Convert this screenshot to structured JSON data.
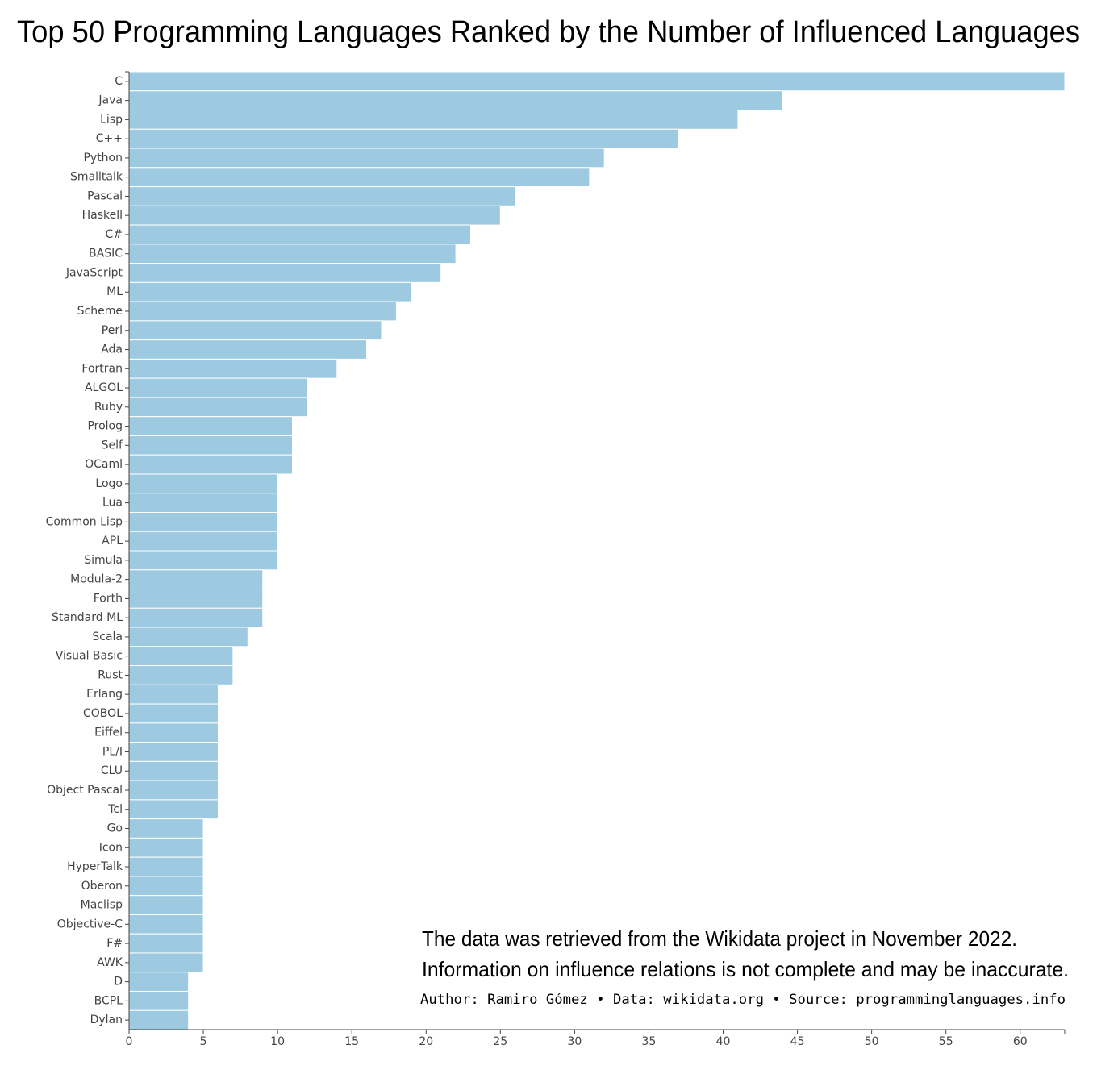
{
  "chart_data": {
    "type": "barh",
    "title": "Top 50 Programming Languages Ranked by the Number of Influenced Languages",
    "categories": [
      "C",
      "Java",
      "Lisp",
      "C++",
      "Python",
      "Smalltalk",
      "Pascal",
      "Haskell",
      "C#",
      "BASIC",
      "JavaScript",
      "ML",
      "Scheme",
      "Perl",
      "Ada",
      "Fortran",
      "ALGOL",
      "Ruby",
      "Prolog",
      "Self",
      "OCaml",
      "Logo",
      "Lua",
      "Common Lisp",
      "APL",
      "Simula",
      "Modula-2",
      "Forth",
      "Standard ML",
      "Scala",
      "Visual Basic",
      "Rust",
      "Erlang",
      "COBOL",
      "Eiffel",
      "PL/I",
      "CLU",
      "Object Pascal",
      "Tcl",
      "Go",
      "Icon",
      "HyperTalk",
      "Oberon",
      "Maclisp",
      "Objective-C",
      "F#",
      "AWK",
      "D",
      "BCPL",
      "Dylan"
    ],
    "values": [
      63,
      44,
      41,
      37,
      32,
      31,
      26,
      25,
      23,
      22,
      21,
      19,
      18,
      17,
      16,
      14,
      12,
      12,
      11,
      11,
      11,
      10,
      10,
      10,
      10,
      10,
      9,
      9,
      9,
      8,
      7,
      7,
      6,
      6,
      6,
      6,
      6,
      6,
      6,
      5,
      5,
      5,
      5,
      5,
      5,
      5,
      5,
      4,
      4,
      4
    ],
    "color": "#9ecae1",
    "xlim": [
      0,
      63
    ],
    "xticks": [
      0,
      5,
      10,
      15,
      20,
      25,
      30,
      35,
      40,
      45,
      50,
      55,
      60
    ],
    "notes": [
      "The data was retrieved from the Wikidata project in November 2022.",
      "Information on influence relations is not complete and may be inaccurate."
    ],
    "credit": "Author: Ramiro Gómez • Data: wikidata.org • Source: programminglanguages.info"
  }
}
